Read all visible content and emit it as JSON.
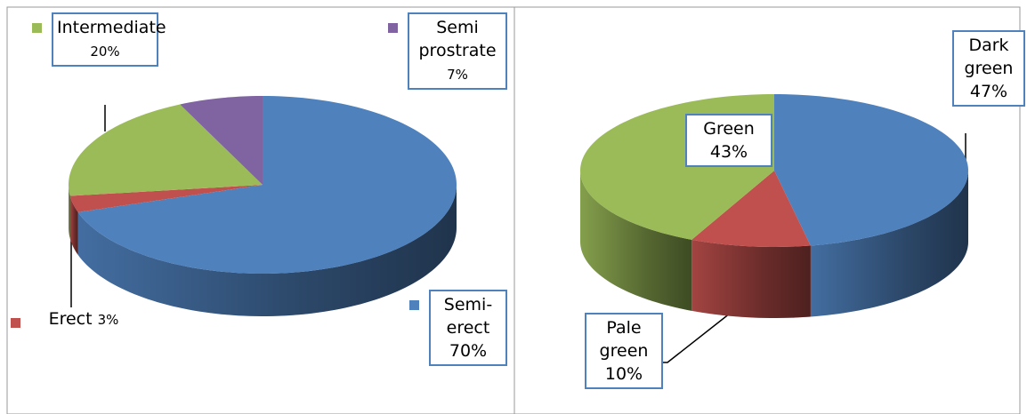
{
  "chart_data": [
    {
      "type": "pie3d",
      "categories": [
        "Semi-erect",
        "Erect",
        "Intermediate",
        "Semi prostrate"
      ],
      "values": [
        70,
        3,
        20,
        7
      ],
      "value_labels": [
        "70%",
        "3%",
        "20%",
        "7%"
      ],
      "colors": [
        "#4f81bd",
        "#c0504d",
        "#9bbb59",
        "#8064a2"
      ],
      "legend_markers": true
    },
    {
      "type": "pie3d",
      "categories": [
        "Dark green",
        "Pale green",
        "Green"
      ],
      "values": [
        47,
        10,
        43
      ],
      "value_labels": [
        "47%",
        "10%",
        "43%"
      ],
      "colors": [
        "#4f81bd",
        "#c0504d",
        "#9bbb59"
      ],
      "legend_markers": false
    }
  ]
}
